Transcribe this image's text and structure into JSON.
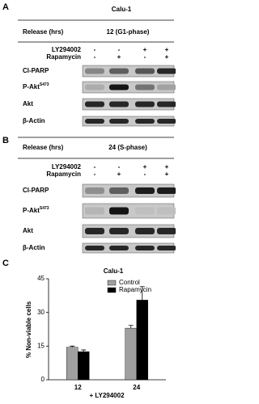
{
  "panel_a": {
    "label": "A",
    "title": "Calu-1",
    "release_label": "Release (hrs)",
    "release_value": "12 (G1-phase)",
    "treatments": [
      {
        "name": "LY294002",
        "signs": [
          "-",
          "-",
          "+",
          "+"
        ]
      },
      {
        "name": "Rapamycin",
        "signs": [
          "-",
          "+",
          "-",
          "+"
        ]
      }
    ],
    "blots": [
      {
        "name": "Cl-PARP"
      },
      {
        "name": "P-Akt",
        "superscript": "S473"
      },
      {
        "name": "Akt"
      },
      {
        "name": "β-Actin"
      }
    ]
  },
  "panel_b": {
    "label": "B",
    "release_label": "Release (hrs)",
    "release_value": "24 (S-phase)",
    "treatments": [
      {
        "name": "LY294002",
        "signs": [
          "-",
          "-",
          "+",
          "+"
        ]
      },
      {
        "name": "Rapamycin",
        "signs": [
          "-",
          "+",
          "-",
          "+"
        ]
      }
    ],
    "blots": [
      {
        "name": "Cl-PARP"
      },
      {
        "name": "P-Akt",
        "superscript": "S473"
      },
      {
        "name": "Akt"
      },
      {
        "name": "β-Actin"
      }
    ]
  },
  "panel_c": {
    "label": "C"
  },
  "chart_data": {
    "type": "bar",
    "title": "Calu-1",
    "ylabel": "% Non-viable cells",
    "xlabel": "+ LY294002",
    "categories": [
      "12",
      "24"
    ],
    "series": [
      {
        "name": "Control",
        "color": "#a0a0a0",
        "values": [
          14.5,
          23
        ],
        "errors": [
          0.5,
          1.2
        ]
      },
      {
        "name": "Rapamycin",
        "color": "#000000",
        "values": [
          12.5,
          35.5
        ],
        "errors": [
          0.8,
          6
        ]
      }
    ],
    "ylim": [
      0,
      45
    ],
    "yticks": [
      0,
      15,
      30,
      45
    ]
  }
}
